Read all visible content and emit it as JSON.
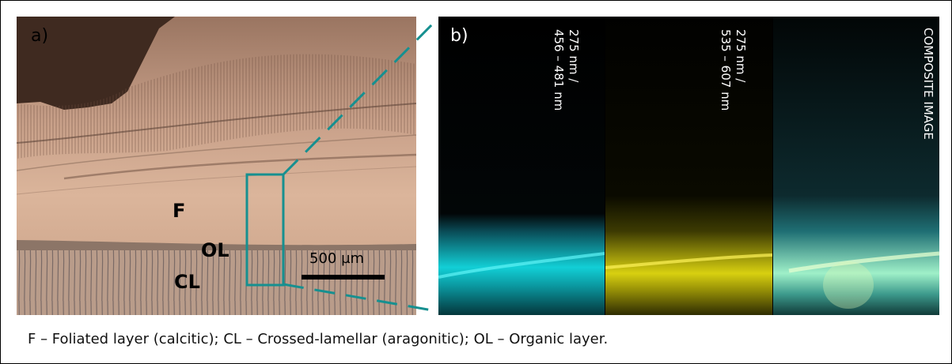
{
  "panels": {
    "a": {
      "letter": "a)",
      "layer_labels": {
        "foliated": "F",
        "organic": "OL",
        "crossed_lamellar": "CL"
      },
      "scale_bar": "500 µm"
    },
    "b": {
      "letter": "b)",
      "strips": [
        {
          "line1": "275 nm /",
          "line2": "456 – 481 nm",
          "glow_color": "#12cfd6"
        },
        {
          "line1": "275 nm /",
          "line2": "535 – 607 nm",
          "glow_color": "#d8d010"
        },
        {
          "line1": "COMPOSITE IMAGE",
          "line2": "",
          "glow_color": "#9ff0c8"
        }
      ]
    }
  },
  "caption": "F – Foliated layer (calcitic);   CL – Crossed-lamellar (aragonitic);   OL – Organic layer.",
  "colors": {
    "highlight": "#169090",
    "photo_tone": "#d3ab8e"
  }
}
